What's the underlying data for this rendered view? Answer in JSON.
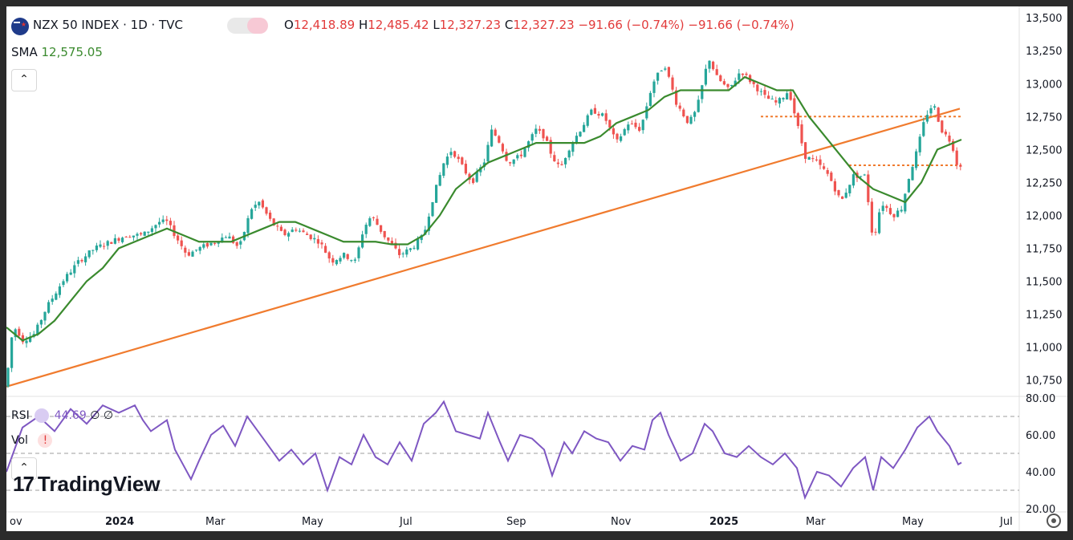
{
  "header": {
    "symbol": "NZX 50 INDEX · 1D · TVC",
    "open_label": "O",
    "open": "12,418.89",
    "high_label": "H",
    "high": "12,485.42",
    "low_label": "L",
    "low": "12,327.23",
    "close_label": "C",
    "close": "12,327.23",
    "change": "−91.66 (−0.74%)",
    "change2": "−91.66 (−0.74%)",
    "sma_label": "SMA",
    "sma_value": "12,575.05"
  },
  "rsi_pane": {
    "rsi_label": "RSI",
    "rsi_value": "44.69",
    "rsi_extra1": "∅",
    "rsi_extra2": "∅",
    "vol_label": "Vol",
    "vol_alert": "!"
  },
  "branding": {
    "logo_text": "TradingView",
    "logo_mark": "17"
  },
  "colors": {
    "up": "#26a69a",
    "down": "#ef5350",
    "sma": "#3a8a2e",
    "trend": "#f07b2e",
    "rsi": "#7e57c2",
    "header_red": "#e23b3b"
  },
  "chart_data": {
    "type": "candlestick",
    "title": "NZX 50 INDEX · 1D · TVC",
    "y_axis_labels": [
      "13,500",
      "13,250",
      "13,000",
      "12,750",
      "12,500",
      "12,250",
      "12,000",
      "11,750",
      "11,500",
      "11,250",
      "11,000",
      "10,750"
    ],
    "x_axis_labels": [
      "ov",
      "2024",
      "Mar",
      "May",
      "Jul",
      "Sep",
      "Nov",
      "2025",
      "Mar",
      "May",
      "Jul"
    ],
    "ylim": [
      10650,
      13550
    ],
    "price_series_approx": [
      [
        0,
        10700
      ],
      [
        5,
        11050
      ],
      [
        12,
        11150
      ],
      [
        20,
        11050
      ],
      [
        35,
        11100
      ],
      [
        50,
        11300
      ],
      [
        70,
        11500
      ],
      [
        90,
        11650
      ],
      [
        110,
        11750
      ],
      [
        130,
        11800
      ],
      [
        150,
        11850
      ],
      [
        170,
        11850
      ],
      [
        190,
        11950
      ],
      [
        200,
        11950
      ],
      [
        210,
        11850
      ],
      [
        225,
        11700
      ],
      [
        240,
        11750
      ],
      [
        260,
        11800
      ],
      [
        275,
        11850
      ],
      [
        290,
        11750
      ],
      [
        305,
        12050
      ],
      [
        315,
        12100
      ],
      [
        330,
        11950
      ],
      [
        345,
        11850
      ],
      [
        360,
        11900
      ],
      [
        375,
        11850
      ],
      [
        390,
        11800
      ],
      [
        405,
        11650
      ],
      [
        420,
        11700
      ],
      [
        435,
        11650
      ],
      [
        445,
        11900
      ],
      [
        455,
        12000
      ],
      [
        470,
        11850
      ],
      [
        490,
        11700
      ],
      [
        505,
        11750
      ],
      [
        520,
        11850
      ],
      [
        530,
        12100
      ],
      [
        545,
        12400
      ],
      [
        555,
        12500
      ],
      [
        565,
        12400
      ],
      [
        580,
        12250
      ],
      [
        595,
        12400
      ],
      [
        605,
        12650
      ],
      [
        615,
        12550
      ],
      [
        625,
        12400
      ],
      [
        640,
        12450
      ],
      [
        660,
        12650
      ],
      [
        670,
        12600
      ],
      [
        680,
        12450
      ],
      [
        690,
        12350
      ],
      [
        700,
        12500
      ],
      [
        715,
        12650
      ],
      [
        730,
        12800
      ],
      [
        745,
        12750
      ],
      [
        760,
        12550
      ],
      [
        775,
        12700
      ],
      [
        790,
        12650
      ],
      [
        805,
        13000
      ],
      [
        820,
        13150
      ],
      [
        835,
        12850
      ],
      [
        850,
        12700
      ],
      [
        860,
        12800
      ],
      [
        875,
        13200
      ],
      [
        885,
        13050
      ],
      [
        900,
        12950
      ],
      [
        915,
        13100
      ],
      [
        930,
        13000
      ],
      [
        945,
        12900
      ],
      [
        960,
        12850
      ],
      [
        975,
        12950
      ],
      [
        985,
        12700
      ],
      [
        995,
        12450
      ],
      [
        1010,
        12400
      ],
      [
        1025,
        12300
      ],
      [
        1040,
        12100
      ],
      [
        1055,
        12300
      ],
      [
        1070,
        12300
      ],
      [
        1080,
        11800
      ],
      [
        1090,
        12100
      ],
      [
        1105,
        12000
      ],
      [
        1115,
        12050
      ],
      [
        1125,
        12300
      ],
      [
        1135,
        12500
      ],
      [
        1145,
        12750
      ],
      [
        1155,
        12850
      ],
      [
        1165,
        12650
      ],
      [
        1178,
        12550
      ],
      [
        1186,
        12350
      ],
      [
        1190,
        12400
      ]
    ],
    "sma_series_approx": [
      [
        0,
        11150
      ],
      [
        20,
        11050
      ],
      [
        40,
        11100
      ],
      [
        60,
        11200
      ],
      [
        80,
        11350
      ],
      [
        100,
        11500
      ],
      [
        120,
        11600
      ],
      [
        140,
        11750
      ],
      [
        160,
        11800
      ],
      [
        180,
        11850
      ],
      [
        200,
        11900
      ],
      [
        220,
        11850
      ],
      [
        240,
        11800
      ],
      [
        260,
        11800
      ],
      [
        280,
        11800
      ],
      [
        300,
        11850
      ],
      [
        320,
        11900
      ],
      [
        340,
        11950
      ],
      [
        360,
        11950
      ],
      [
        380,
        11900
      ],
      [
        400,
        11850
      ],
      [
        420,
        11800
      ],
      [
        440,
        11800
      ],
      [
        460,
        11800
      ],
      [
        480,
        11780
      ],
      [
        500,
        11780
      ],
      [
        520,
        11850
      ],
      [
        540,
        12000
      ],
      [
        560,
        12200
      ],
      [
        580,
        12300
      ],
      [
        600,
        12400
      ],
      [
        620,
        12450
      ],
      [
        640,
        12500
      ],
      [
        660,
        12550
      ],
      [
        680,
        12550
      ],
      [
        700,
        12550
      ],
      [
        720,
        12550
      ],
      [
        740,
        12600
      ],
      [
        760,
        12700
      ],
      [
        780,
        12750
      ],
      [
        800,
        12800
      ],
      [
        820,
        12900
      ],
      [
        840,
        12950
      ],
      [
        860,
        12950
      ],
      [
        880,
        12950
      ],
      [
        900,
        12950
      ],
      [
        920,
        13050
      ],
      [
        940,
        13000
      ],
      [
        960,
        12950
      ],
      [
        980,
        12950
      ],
      [
        1000,
        12750
      ],
      [
        1020,
        12600
      ],
      [
        1040,
        12450
      ],
      [
        1060,
        12300
      ],
      [
        1080,
        12200
      ],
      [
        1100,
        12150
      ],
      [
        1120,
        12100
      ],
      [
        1140,
        12250
      ],
      [
        1160,
        12500
      ],
      [
        1180,
        12550
      ],
      [
        1190,
        12575
      ]
    ],
    "trendline": {
      "from": [
        0,
        10700
      ],
      "to": [
        1188,
        12810
      ]
    },
    "resistance_levels": [
      {
        "y": 12750,
        "x_from": 940,
        "x_to": 1190
      },
      {
        "y": 12380,
        "x_from": 1050,
        "x_to": 1190
      }
    ],
    "rsi": {
      "ylim": [
        20,
        80
      ],
      "y_axis_labels": [
        "80.00",
        "60.00",
        "40.00",
        "20.00"
      ],
      "guide_levels": [
        70,
        50,
        30
      ],
      "values_approx": [
        [
          0,
          40
        ],
        [
          20,
          64
        ],
        [
          40,
          70
        ],
        [
          60,
          62
        ],
        [
          80,
          74
        ],
        [
          100,
          66
        ],
        [
          120,
          76
        ],
        [
          140,
          72
        ],
        [
          160,
          76
        ],
        [
          170,
          68
        ],
        [
          180,
          62
        ],
        [
          200,
          68
        ],
        [
          210,
          52
        ],
        [
          220,
          44
        ],
        [
          230,
          36
        ],
        [
          240,
          46
        ],
        [
          255,
          60
        ],
        [
          270,
          65
        ],
        [
          285,
          54
        ],
        [
          300,
          70
        ],
        [
          310,
          64
        ],
        [
          320,
          58
        ],
        [
          340,
          46
        ],
        [
          355,
          52
        ],
        [
          370,
          44
        ],
        [
          385,
          50
        ],
        [
          400,
          30
        ],
        [
          415,
          48
        ],
        [
          430,
          44
        ],
        [
          445,
          60
        ],
        [
          460,
          48
        ],
        [
          475,
          44
        ],
        [
          490,
          56
        ],
        [
          505,
          46
        ],
        [
          520,
          66
        ],
        [
          535,
          72
        ],
        [
          545,
          78
        ],
        [
          560,
          62
        ],
        [
          575,
          60
        ],
        [
          590,
          58
        ],
        [
          600,
          72
        ],
        [
          615,
          56
        ],
        [
          625,
          46
        ],
        [
          640,
          60
        ],
        [
          655,
          58
        ],
        [
          670,
          52
        ],
        [
          680,
          38
        ],
        [
          695,
          56
        ],
        [
          705,
          50
        ],
        [
          720,
          62
        ],
        [
          735,
          58
        ],
        [
          750,
          56
        ],
        [
          765,
          46
        ],
        [
          780,
          54
        ],
        [
          795,
          52
        ],
        [
          805,
          68
        ],
        [
          815,
          72
        ],
        [
          825,
          60
        ],
        [
          840,
          46
        ],
        [
          855,
          50
        ],
        [
          870,
          66
        ],
        [
          880,
          62
        ],
        [
          895,
          50
        ],
        [
          910,
          48
        ],
        [
          925,
          54
        ],
        [
          940,
          48
        ],
        [
          955,
          44
        ],
        [
          970,
          50
        ],
        [
          985,
          42
        ],
        [
          995,
          26
        ],
        [
          1010,
          40
        ],
        [
          1025,
          38
        ],
        [
          1040,
          32
        ],
        [
          1055,
          42
        ],
        [
          1070,
          48
        ],
        [
          1080,
          30
        ],
        [
          1090,
          48
        ],
        [
          1105,
          42
        ],
        [
          1120,
          52
        ],
        [
          1135,
          64
        ],
        [
          1150,
          70
        ],
        [
          1160,
          62
        ],
        [
          1175,
          54
        ],
        [
          1186,
          44
        ],
        [
          1190,
          45
        ]
      ]
    }
  }
}
